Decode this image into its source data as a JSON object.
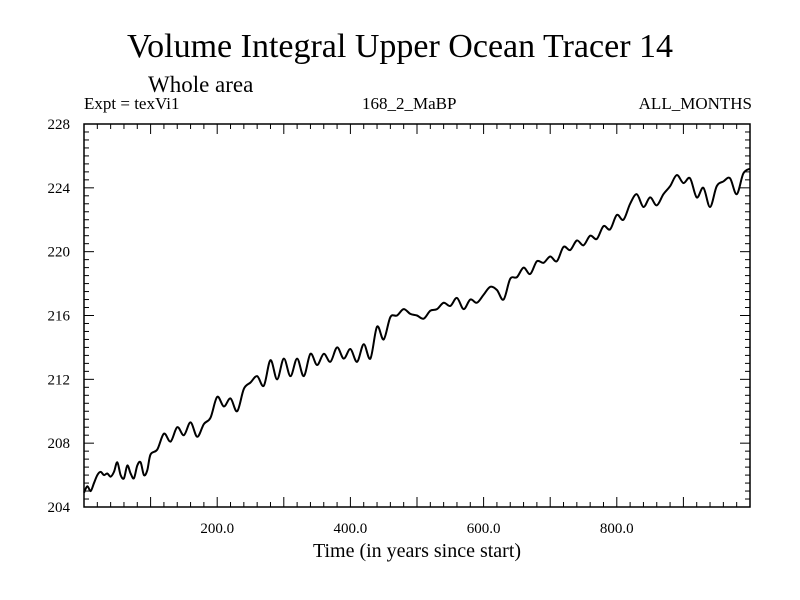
{
  "chart_data": {
    "type": "line",
    "title": "Volume Integral Upper Ocean Tracer 14",
    "subtitle": "Whole area",
    "experiment_label": "Expt = texVi1",
    "run_label": "168_2_MaBP",
    "months_label": "ALL_MONTHS",
    "xlabel": "Time (in years since start)",
    "ylabel": "",
    "xlim": [
      0,
      1000
    ],
    "ylim": [
      204,
      228
    ],
    "xticks": [
      200,
      400,
      600,
      800
    ],
    "xtick_labels": [
      "200.0",
      "400.0",
      "600.0",
      "800.0"
    ],
    "yticks": [
      204,
      208,
      212,
      216,
      220,
      224,
      228
    ],
    "ytick_labels": [
      "204",
      "208",
      "212",
      "216",
      "220",
      "224",
      "228"
    ],
    "grid": false,
    "series": [
      {
        "name": "Tracer 14",
        "color": "#000000",
        "x": [
          0,
          5,
          10,
          15,
          20,
          25,
          30,
          35,
          40,
          45,
          50,
          55,
          60,
          65,
          70,
          75,
          80,
          85,
          90,
          95,
          100,
          110,
          120,
          130,
          140,
          150,
          160,
          170,
          180,
          190,
          200,
          210,
          220,
          230,
          240,
          250,
          260,
          270,
          280,
          290,
          300,
          310,
          320,
          330,
          340,
          350,
          360,
          370,
          380,
          390,
          400,
          410,
          420,
          430,
          440,
          450,
          460,
          470,
          480,
          490,
          500,
          510,
          520,
          530,
          540,
          550,
          560,
          570,
          580,
          590,
          600,
          610,
          620,
          630,
          640,
          650,
          660,
          670,
          680,
          690,
          700,
          710,
          720,
          730,
          740,
          750,
          760,
          770,
          780,
          790,
          800,
          810,
          820,
          830,
          840,
          850,
          860,
          870,
          880,
          890,
          900,
          910,
          920,
          930,
          940,
          950,
          960,
          970,
          980,
          990,
          1000
        ],
        "values": [
          204.9,
          205.3,
          205.0,
          205.5,
          206.0,
          206.2,
          206.0,
          206.1,
          205.9,
          206.2,
          206.8,
          206.0,
          205.8,
          206.6,
          206.1,
          205.8,
          206.6,
          206.8,
          206.0,
          206.3,
          207.3,
          207.6,
          208.6,
          208.1,
          209.0,
          208.5,
          209.3,
          208.4,
          209.2,
          209.6,
          210.9,
          210.3,
          210.8,
          210.0,
          211.4,
          211.8,
          212.2,
          211.6,
          213.2,
          212.0,
          213.3,
          212.2,
          213.3,
          212.2,
          213.6,
          212.9,
          213.6,
          213.1,
          214.0,
          213.3,
          213.9,
          213.1,
          214.2,
          213.3,
          215.3,
          214.5,
          215.9,
          216.0,
          216.4,
          216.1,
          216.0,
          215.8,
          216.3,
          216.4,
          216.8,
          216.6,
          217.1,
          216.4,
          217.0,
          216.8,
          217.3,
          217.8,
          217.6,
          217.0,
          218.3,
          218.4,
          219.0,
          218.6,
          219.4,
          219.3,
          219.7,
          219.4,
          220.3,
          220.1,
          220.7,
          220.4,
          221.0,
          220.8,
          221.6,
          221.4,
          222.3,
          222.0,
          223.0,
          223.6,
          222.8,
          223.4,
          222.9,
          223.6,
          224.1,
          224.8,
          224.3,
          224.6,
          223.4,
          224.0,
          222.8,
          224.1,
          224.4,
          224.6,
          223.6,
          224.9,
          225.2
        ]
      }
    ]
  }
}
